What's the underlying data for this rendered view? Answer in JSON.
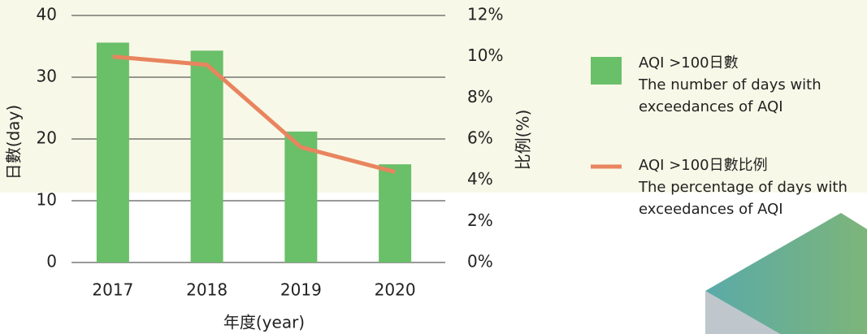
{
  "chart_data": {
    "type": "bar-line",
    "categories": [
      "2017",
      "2018",
      "2019",
      "2020"
    ],
    "series": [
      {
        "name": "AQI >100日數",
        "description": [
          "The number of days with",
          "exceedances of AQI"
        ],
        "type": "bar",
        "color": "#6abf69",
        "values": [
          35.6,
          34.3,
          21.2,
          15.9
        ]
      },
      {
        "name": "AQI >100日數比例",
        "description": [
          "The percentage of days with",
          "exceedances of AQI"
        ],
        "type": "line",
        "axis": "y2",
        "color": "#e8855e",
        "values": [
          10.0,
          9.6,
          5.6,
          4.4
        ]
      }
    ],
    "ylabel": "日數(day)",
    "y2label": "比例(%)",
    "xlabel": "年度(year)",
    "ylim": [
      0,
      40
    ],
    "yticks": [
      0,
      10,
      20,
      30,
      40
    ],
    "y2lim": [
      0,
      12
    ],
    "y2ticks": [
      {
        "value": 0,
        "label": "0%"
      },
      {
        "value": 2,
        "label": "2%"
      },
      {
        "value": 4,
        "label": "4%"
      },
      {
        "value": 6,
        "label": "6%"
      },
      {
        "value": 8,
        "label": "8%"
      },
      {
        "value": 10,
        "label": "10%"
      },
      {
        "value": 12,
        "label": "12%"
      }
    ],
    "grid": true
  }
}
